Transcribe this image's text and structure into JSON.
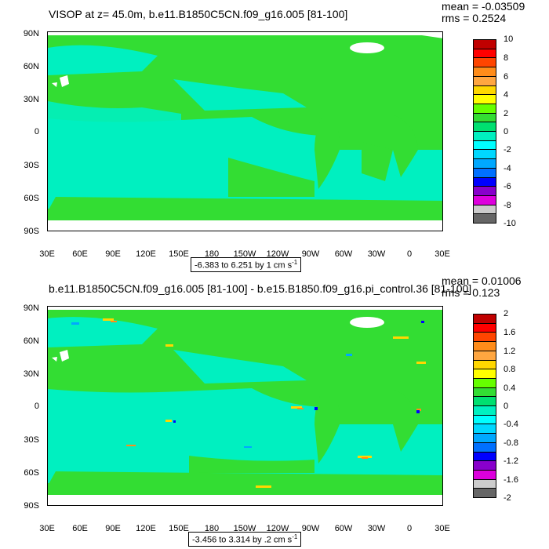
{
  "panels": [
    {
      "title": "VISOP at z=  45.0m, b.e11.B1850C5CN.f09_g16.005 [81-100]",
      "mean": "mean = -0.03509",
      "rms": "rms = 0.2524",
      "range": "-6.383 to 6.251 by 1 cm s",
      "range_unit_sup": "-1",
      "colorbar_labels": [
        "10",
        "8",
        "6",
        "4",
        "2",
        "0",
        "-2",
        "-4",
        "-6",
        "-8",
        "-10"
      ]
    },
    {
      "title": "b.e11.B1850C5CN.f09_g16.005 [81-100] - b.e15.B1850.f09_g16.pi_control.36 [81-100]",
      "mean": "mean = 0.01006",
      "rms": "rms = 0.123",
      "range": "-3.456 to 3.314 by .2 cm s",
      "range_unit_sup": "-1",
      "colorbar_labels": [
        "2",
        "1.6",
        "1.2",
        "0.8",
        "0.4",
        "0",
        "-0.4",
        "-0.8",
        "-1.2",
        "-1.6",
        "-2"
      ]
    }
  ],
  "lat_labels": [
    "90N",
    "60N",
    "30N",
    "0",
    "30S",
    "60S",
    "90S"
  ],
  "lon_labels": [
    "30E",
    "60E",
    "90E",
    "120E",
    "150E",
    "180",
    "150W",
    "120W",
    "90W",
    "60W",
    "30W",
    "0",
    "30E"
  ],
  "colors": {
    "colorbar": [
      "#c00000",
      "#ff0000",
      "#ff4500",
      "#ff8c1a",
      "#ffa640",
      "#ffd700",
      "#ffff00",
      "#66ff00",
      "#33dd33",
      "#00e070",
      "#00f0c0",
      "#00ffff",
      "#00d8ff",
      "#00a8ff",
      "#0070ff",
      "#0000ff",
      "#8800cc",
      "#dd00dd",
      "#cccccc",
      "#666666"
    ],
    "green": "#33dd33",
    "cyan": "#00f0c0",
    "sea_ice": "#ffffff"
  }
}
